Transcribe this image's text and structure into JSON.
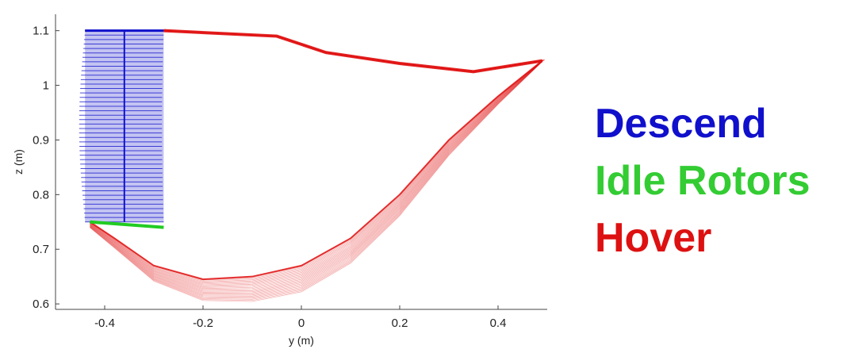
{
  "chart_data": {
    "type": "line",
    "xlabel": "y (m)",
    "ylabel": "z (m)",
    "xlim": [
      -0.5,
      0.5
    ],
    "ylim": [
      0.59,
      1.13
    ],
    "x_ticks": [
      "-0.4",
      "-0.2",
      "0",
      "0.2",
      "0.4"
    ],
    "x_tick_values": [
      -0.4,
      -0.2,
      0,
      0.2,
      0.4
    ],
    "y_ticks": [
      "0.6",
      "0.7",
      "0.8",
      "0.9",
      "1",
      "1.1"
    ],
    "y_tick_values": [
      0.6,
      0.7,
      0.8,
      0.9,
      1.0,
      1.1
    ],
    "grid": false,
    "legend_placement": "right",
    "series": [
      {
        "name": "Descend",
        "color": "#1010cc",
        "x": [
          -0.44,
          -0.36,
          -0.28
        ],
        "z_top": 1.1,
        "z_bottom": 0.75,
        "bar_count": 44
      },
      {
        "name": "Idle Rotors",
        "color": "#22cc22",
        "x": [
          -0.43,
          -0.28
        ],
        "z": [
          0.75,
          0.74
        ]
      },
      {
        "name": "Hover",
        "color": "#e01010",
        "upper_path": [
          {
            "x": -0.28,
            "z": 1.1
          },
          {
            "x": -0.05,
            "z": 1.09
          },
          {
            "x": 0.05,
            "z": 1.06
          },
          {
            "x": 0.2,
            "z": 1.04
          },
          {
            "x": 0.35,
            "z": 1.025
          },
          {
            "x": 0.49,
            "z": 1.045
          }
        ],
        "lower_path": [
          {
            "x": 0.49,
            "z": 1.045
          },
          {
            "x": 0.4,
            "z": 0.98
          },
          {
            "x": 0.3,
            "z": 0.9
          },
          {
            "x": 0.2,
            "z": 0.8
          },
          {
            "x": 0.1,
            "z": 0.72
          },
          {
            "x": 0.0,
            "z": 0.67
          },
          {
            "x": -0.1,
            "z": 0.65
          },
          {
            "x": -0.2,
            "z": 0.645
          },
          {
            "x": -0.3,
            "z": 0.67
          },
          {
            "x": -0.38,
            "z": 0.72
          },
          {
            "x": -0.43,
            "z": 0.75
          }
        ],
        "frame_count": 24
      }
    ]
  },
  "legend": {
    "descend": "Descend",
    "idle": "Idle Rotors",
    "hover": "Hover"
  }
}
